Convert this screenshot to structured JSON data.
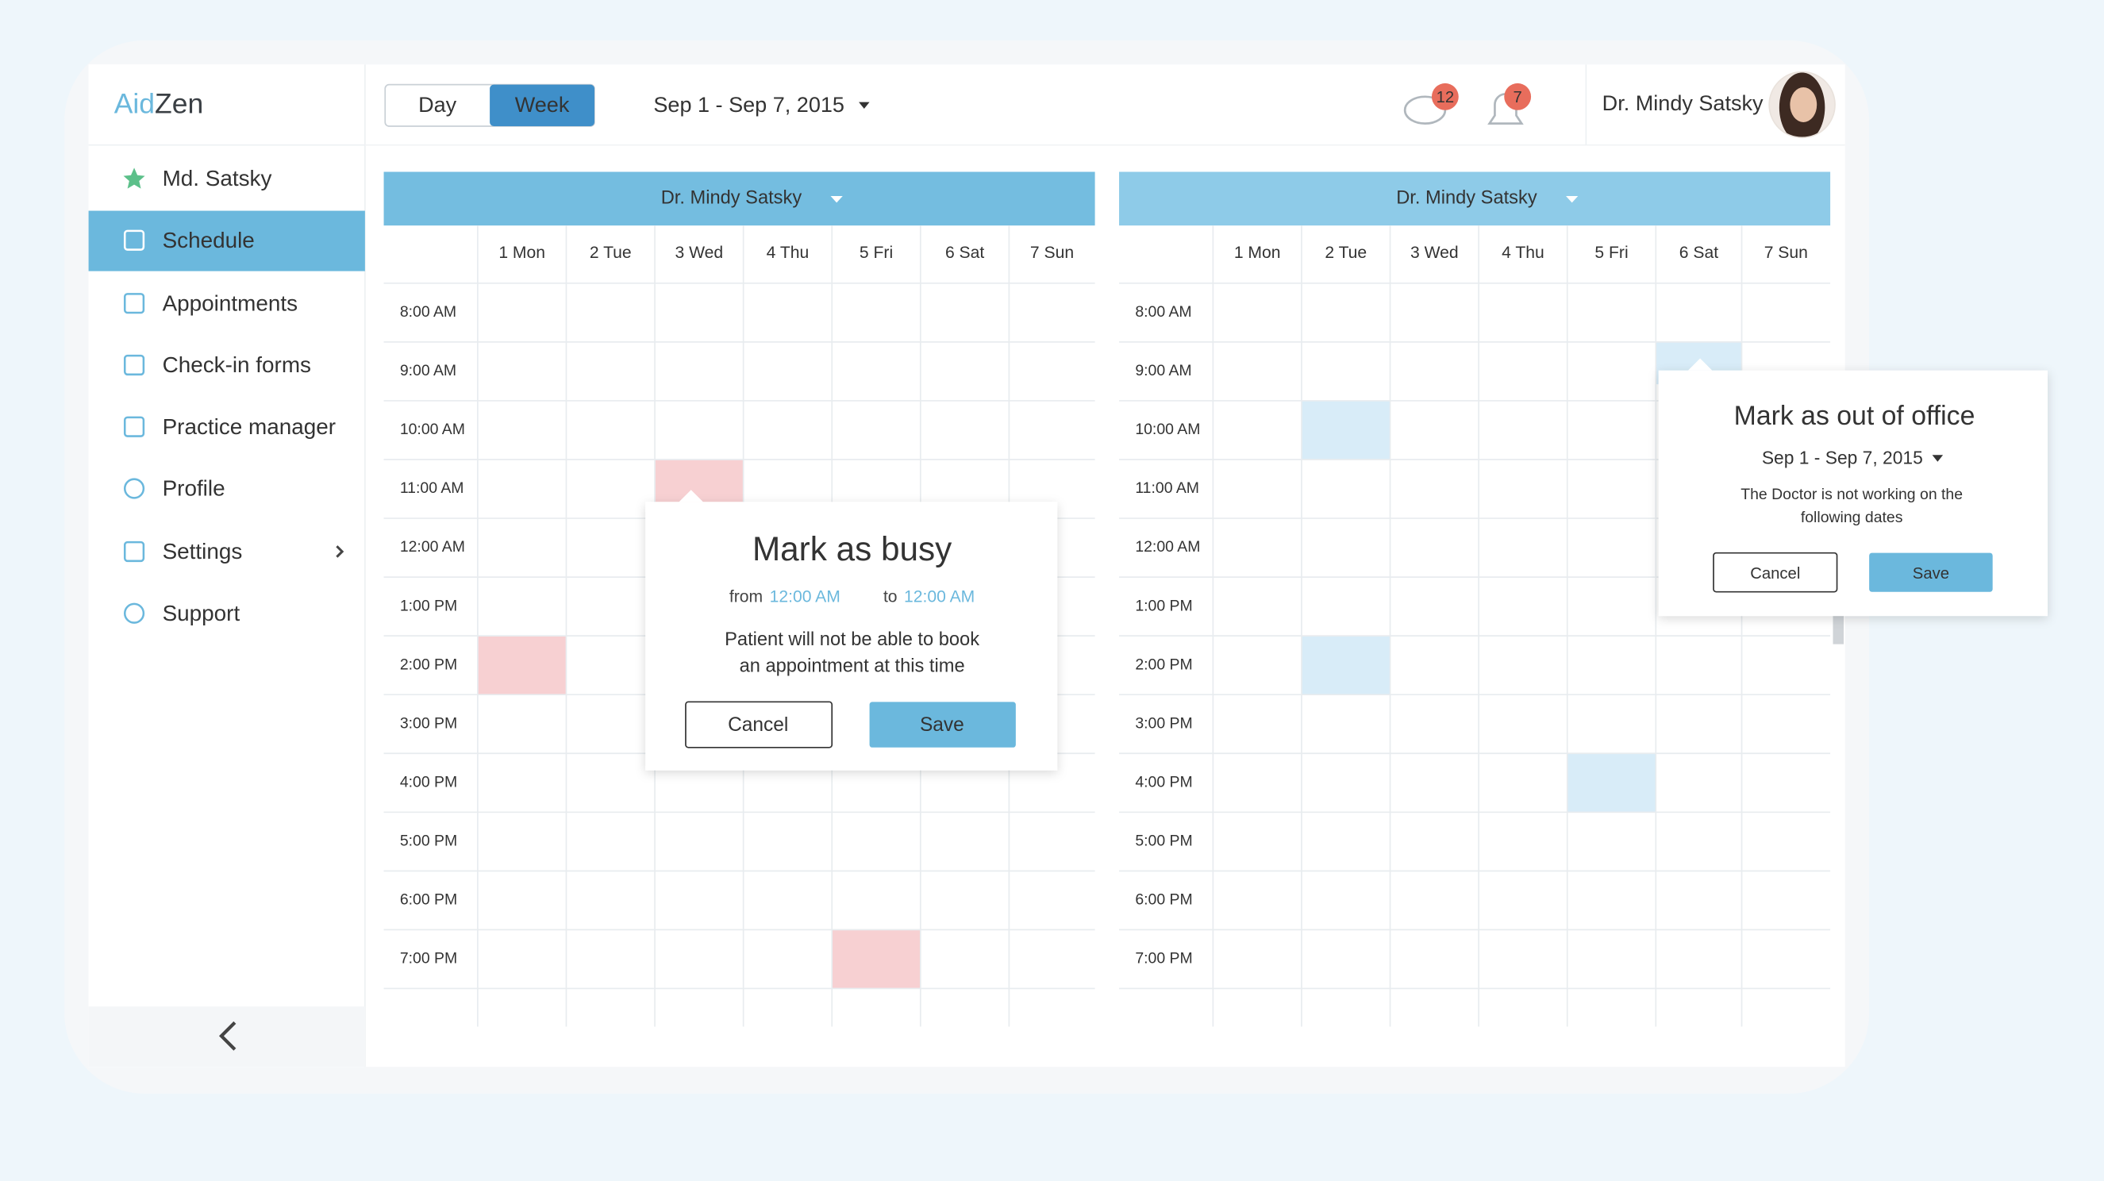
{
  "brand": {
    "part1": "Aid",
    "part2": "Zen"
  },
  "sidebar": {
    "items": [
      "Md. Satsky",
      "Schedule",
      "Appointments",
      "Check-in forms",
      "Practice manager",
      "Profile",
      "Settings",
      "Support"
    ]
  },
  "header": {
    "view_toggle": [
      "Day",
      "Week"
    ],
    "date_range": "Sep 1 - Sep 7, 2015",
    "messages_count": "12",
    "notifications_count": "7",
    "user_name": "Dr. Mindy Satsky"
  },
  "calendars": [
    {
      "doctor": "Dr. Mindy Satsky",
      "days": [
        "1 Mon",
        "2 Tue",
        "3 Wed",
        "4 Thu",
        "5 Fri",
        "6 Sat",
        "7 Sun"
      ],
      "times": [
        "8:00 AM",
        "9:00 AM",
        "10:00 AM",
        "11:00 AM",
        "12:00 AM",
        "1:00 PM",
        "2:00 PM",
        "3:00 PM",
        "4:00 PM",
        "5:00 PM",
        "6:00 PM",
        "7:00 PM"
      ]
    },
    {
      "doctor": "Dr. Mindy Satsky",
      "days": [
        "1 Mon",
        "2 Tue",
        "3 Wed",
        "4 Thu",
        "5 Fri",
        "6 Sat",
        "7 Sun"
      ],
      "times": [
        "8:00 AM",
        "9:00 AM",
        "10:00 AM",
        "11:00 AM",
        "12:00 AM",
        "1:00 PM",
        "2:00 PM",
        "3:00 PM",
        "4:00 PM",
        "5:00 PM",
        "6:00 PM",
        "7:00 PM"
      ]
    }
  ],
  "busy_dialog": {
    "title": "Mark as busy",
    "from_label": "from",
    "from_time": "12:00 AM",
    "to_label": "to",
    "to_time": "12:00 AM",
    "message_lines": [
      "Patient will not be able to book",
      "an appointment at this time"
    ],
    "cancel": "Cancel",
    "save": "Save"
  },
  "office_dialog": {
    "title": "Mark as out of office",
    "date_range": "Sep 1 - Sep 7, 2015",
    "message_lines": [
      "The Doctor is not working on the",
      "following dates"
    ],
    "cancel": "Cancel",
    "save": "Save"
  }
}
